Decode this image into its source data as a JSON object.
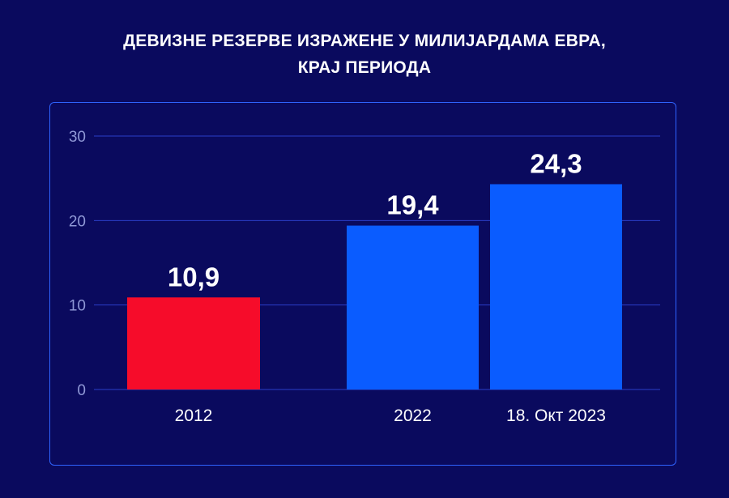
{
  "title_lines": [
    "ДЕВИЗНЕ РЕЗЕРВЕ ИЗРАЖЕНЕ У МИЛИЈАРДАМА ЕВРА,",
    "КРАЈ ПЕРИОДА"
  ],
  "colors": {
    "background": "#0a0a5e",
    "panel_border": "#2f63ff",
    "grid": "#2a3ec8",
    "tick_text": "#8f98d6",
    "category_text": "#ffffff",
    "value_text": "#ffffff"
  },
  "chart_data": {
    "type": "bar",
    "title": "ДЕВИЗНЕ РЕЗЕРВЕ ИЗРАЖЕНЕ У МИЛИЈАРДАМА ЕВРА, КРАЈ ПЕРИОДА",
    "xlabel": "",
    "ylabel": "",
    "ylim": [
      0,
      30
    ],
    "yticks": [
      0,
      10,
      20,
      30
    ],
    "grid": true,
    "categories": [
      "2012",
      "2022",
      "18. Окт 2023"
    ],
    "values": [
      10.9,
      19.4,
      24.3
    ],
    "value_labels": [
      "10,9",
      "19,4",
      "24,3"
    ],
    "bar_colors": [
      "#f60c2a",
      "#0a5cff",
      "#0a5cff"
    ]
  }
}
